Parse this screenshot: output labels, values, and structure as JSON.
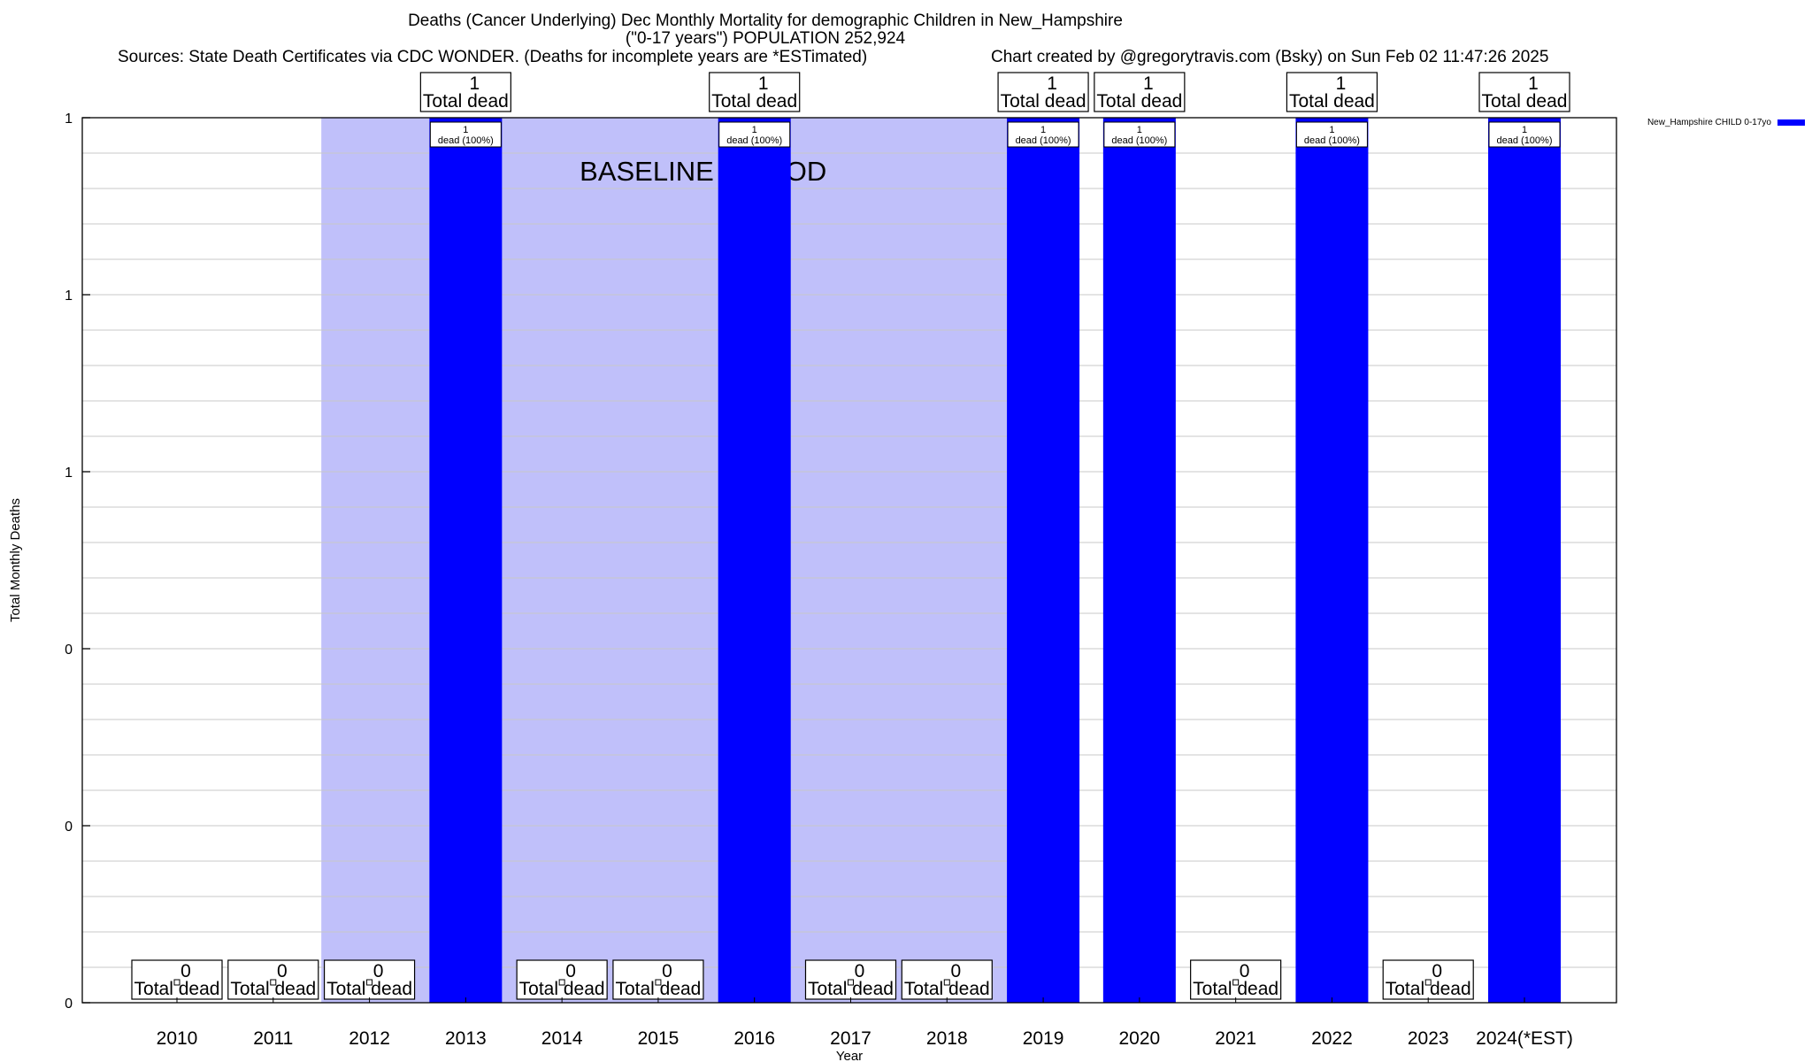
{
  "header": {
    "title_line1": "Deaths (Cancer Underlying) Dec Monthly Mortality for demographic Children in New_Hampshire",
    "title_line2": "(\"0-17 years\") POPULATION 252,924",
    "sources": "Sources: State Death Certificates via CDC WONDER. (Deaths for incomplete years are *ESTimated)",
    "credit": "Chart created by @gregorytravis.com (Bsky) on Sun Feb 02 11:47:26 2025"
  },
  "chart_data": {
    "type": "bar",
    "xlabel": "Year",
    "ylabel": "Total Monthly Deaths",
    "ylim": [
      0,
      1
    ],
    "ytick_labels": [
      "0",
      "0",
      "0",
      "1",
      "1",
      "1"
    ],
    "grid": true,
    "legend_position": "top-right",
    "categories": [
      "2010",
      "2011",
      "2012",
      "2013",
      "2014",
      "2015",
      "2016",
      "2017",
      "2018",
      "2019",
      "2020",
      "2021",
      "2022",
      "2023",
      "2024(*EST)"
    ],
    "series": [
      {
        "name": "New_Hampshire CHILD 0-17yo",
        "color": "#0000ff",
        "values": [
          0,
          0,
          0,
          1,
          0,
          0,
          1,
          0,
          0,
          1,
          1,
          0,
          1,
          0,
          1
        ]
      }
    ],
    "total_labels": [
      "0",
      "0",
      "0",
      "1",
      "0",
      "0",
      "1",
      "0",
      "0",
      "1",
      "1",
      "0",
      "1",
      "0",
      "1"
    ],
    "total_label_suffix": "Total dead",
    "bar_labels": [
      null,
      null,
      null,
      "1|dead (100%)",
      null,
      null,
      "1|dead (100%)",
      null,
      null,
      "1|dead (100%)",
      "1|dead (100%)",
      null,
      "1|dead (100%)",
      null,
      "1|dead (100%)"
    ],
    "baseline_period": {
      "label": "BASELINE PERIOD",
      "from": "2012",
      "to": "2019",
      "color": "#c0c0fa"
    }
  }
}
